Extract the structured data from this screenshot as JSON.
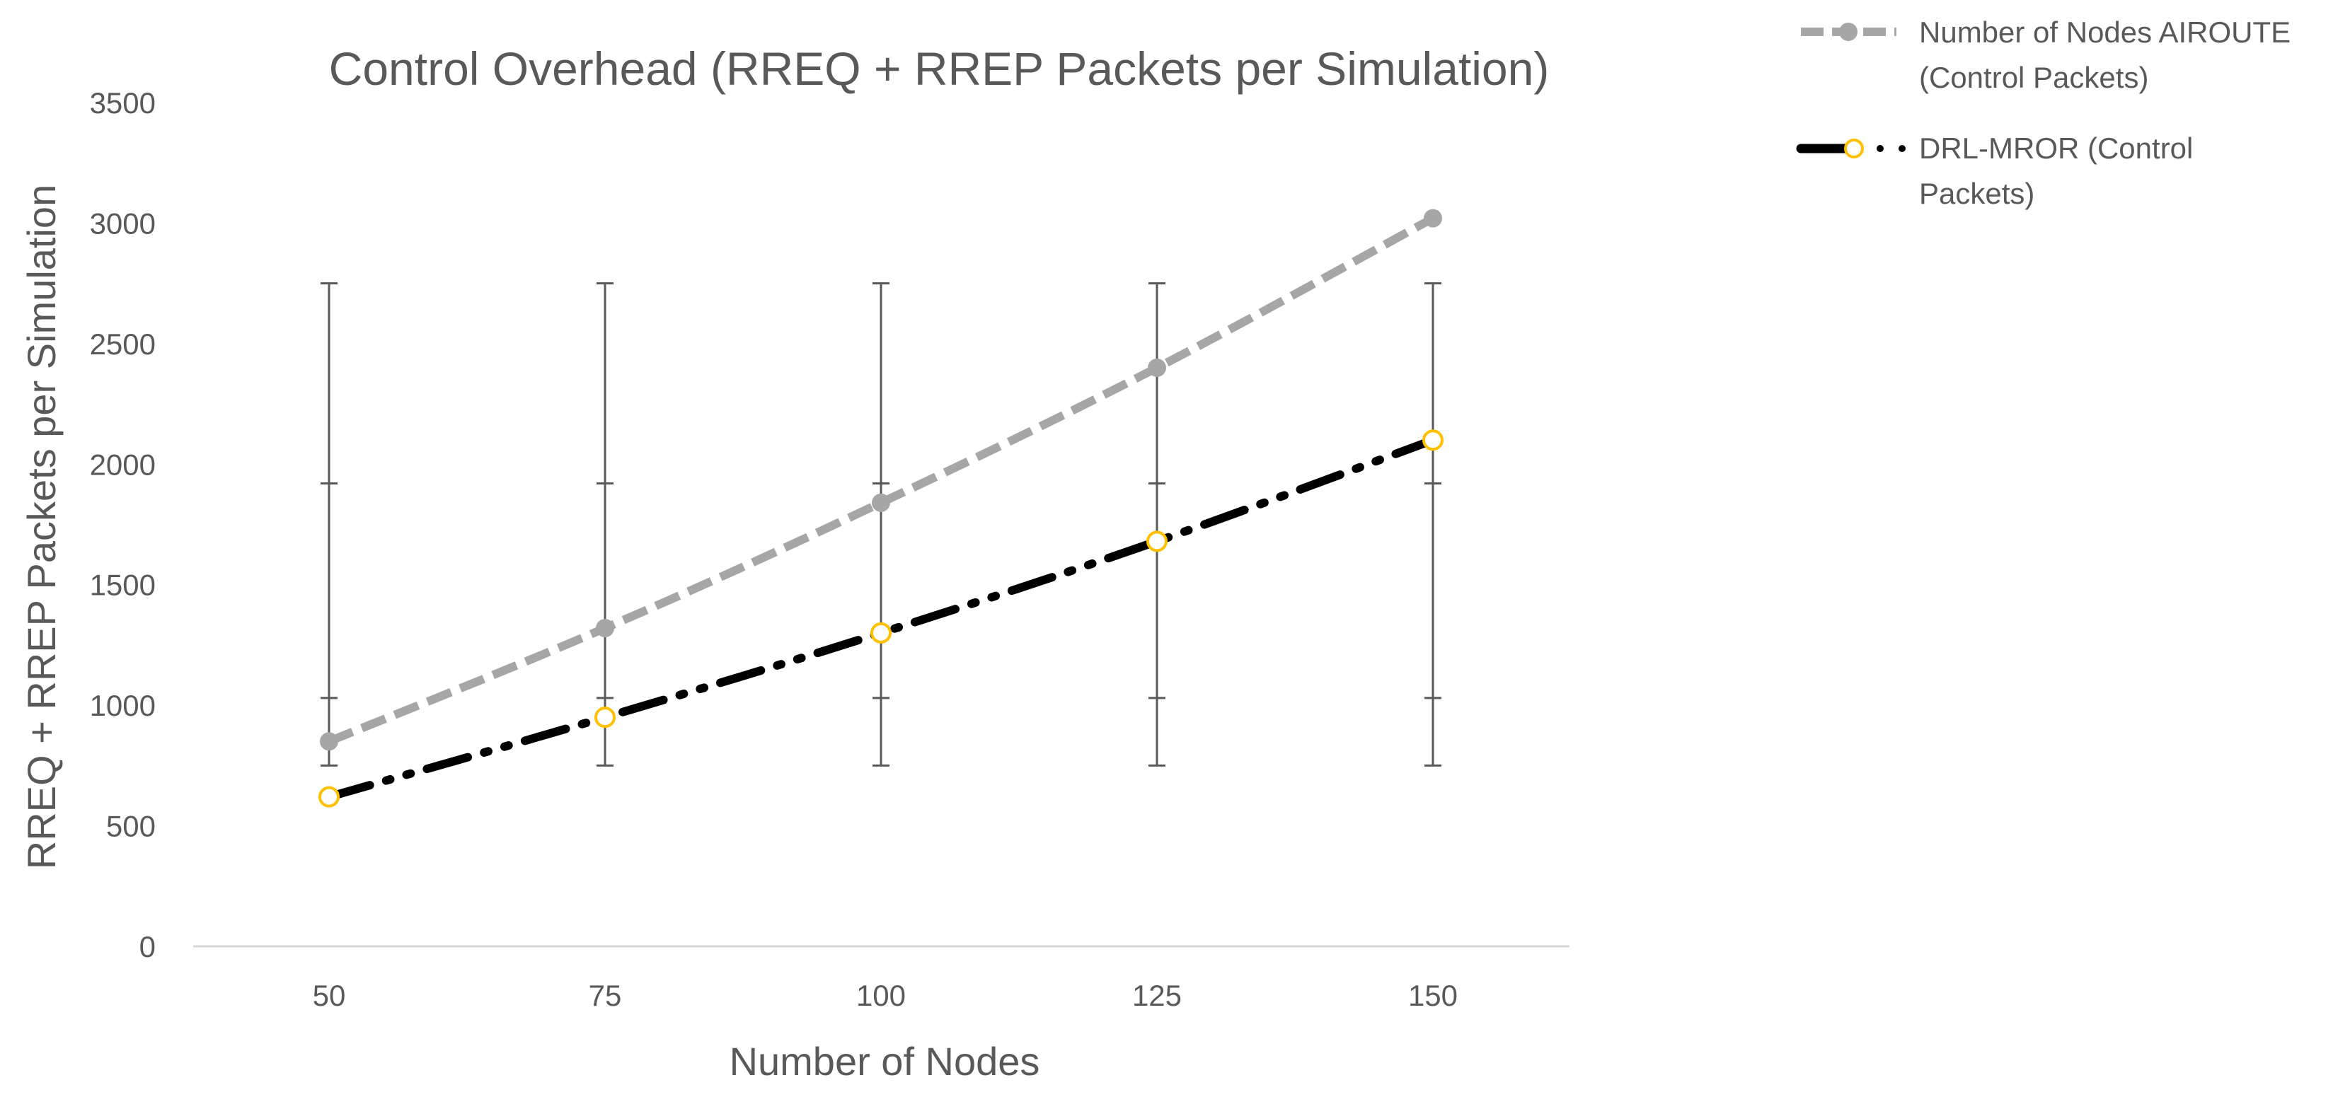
{
  "chart_data": {
    "type": "line",
    "title": "Control Overhead (RREQ + RREP Packets per Simulation)",
    "xlabel": "Number of Nodes",
    "ylabel": "RREQ + RREP Packets per Simulation",
    "categories": [
      "50",
      "75",
      "100",
      "125",
      "150"
    ],
    "ylim": [
      0,
      3500
    ],
    "yticks": [
      "0",
      "500",
      "1000",
      "1500",
      "2000",
      "2500",
      "3000",
      "3500"
    ],
    "grid": false,
    "legend_position": "top-right",
    "error_bars": {
      "lower": [
        750,
        750,
        750,
        750,
        750
      ],
      "upper": [
        2750,
        2750,
        2750,
        2750,
        2750
      ],
      "mid_ticks": [
        1030,
        1920
      ]
    },
    "series": [
      {
        "name": "Number of Nodes AIROUTE (Control Packets)",
        "values": [
          850,
          1320,
          1840,
          2400,
          3020
        ],
        "color": "#a6a6a6",
        "marker_color": "#a6a6a6",
        "line_style": "dashed"
      },
      {
        "name": "DRL-MROR (Control Packets)",
        "values": [
          620,
          950,
          1300,
          1680,
          2100
        ],
        "color": "#000000",
        "marker_color": "#ffc000",
        "line_style": "dash-dot-dot"
      }
    ]
  },
  "legend": {
    "item1_line1": "Number of Nodes AIROUTE",
    "item1_line2": "(Control Packets)",
    "item2_line1": "DRL-MROR (Control",
    "item2_line2": "Packets)"
  }
}
